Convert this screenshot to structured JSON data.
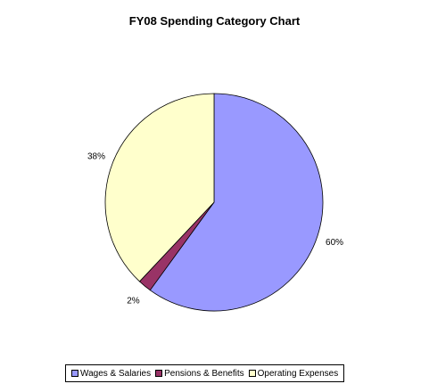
{
  "chart_data": {
    "type": "pie",
    "title": "FY08 Spending Category Chart",
    "slices": [
      {
        "name": "Wages & Salaries",
        "value": 60,
        "label": "60%",
        "color": "#9999ff"
      },
      {
        "name": "Pensions & Benefits",
        "value": 2,
        "label": "2%",
        "color": "#993366"
      },
      {
        "name": "Operating Expenses",
        "value": 38,
        "label": "38%",
        "color": "#ffffcc"
      }
    ],
    "start_angle_deg": 0,
    "direction": "clockwise",
    "legend_position": "bottom"
  }
}
